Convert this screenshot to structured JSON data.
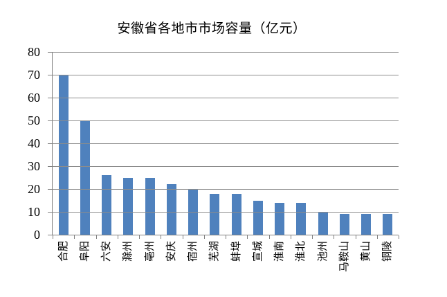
{
  "chart_data": {
    "type": "bar",
    "title": "安徽省各地市市场容量（亿元）",
    "categories": [
      "合肥",
      "阜阳",
      "六安",
      "滁州",
      "亳州",
      "安庆",
      "宿州",
      "芜湖",
      "蚌埠",
      "宣城",
      "淮南",
      "淮北",
      "池州",
      "马鞍山",
      "黄山",
      "铜陵"
    ],
    "values": [
      70,
      50,
      26,
      25,
      25,
      22,
      20,
      18,
      18,
      15,
      14,
      14,
      10,
      9,
      9,
      9
    ],
    "xlabel": "",
    "ylabel": "",
    "ylim": [
      0,
      80
    ],
    "yticks": [
      0,
      10,
      20,
      30,
      40,
      50,
      60,
      70,
      80
    ],
    "grid": "horizontal",
    "legend": "none",
    "colors": {
      "bar": "#4F81BD",
      "gridline": "#8C8C8C",
      "axis": "#808080",
      "text": "#000000",
      "background": "#FFFFFF"
    }
  }
}
